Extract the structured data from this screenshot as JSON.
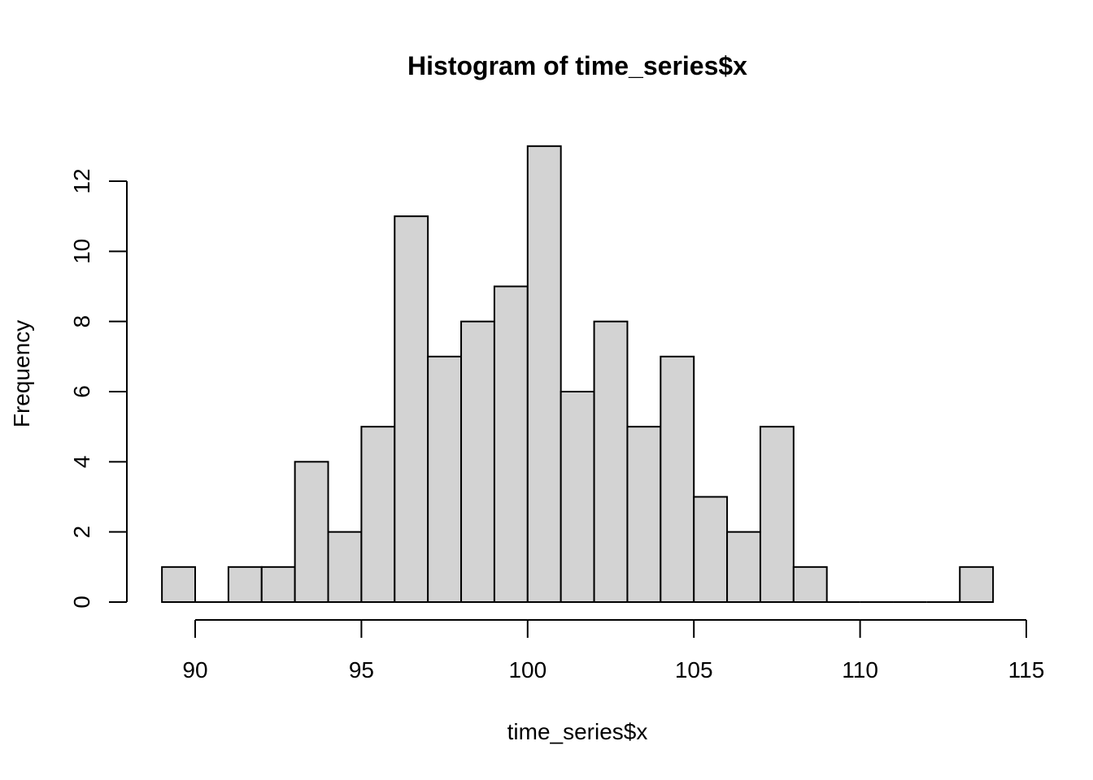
{
  "chart_data": {
    "type": "bar",
    "subtype": "histogram",
    "title": "Histogram of time_series$x",
    "xlabel": "time_series$x",
    "ylabel": "Frequency",
    "bin_edges": [
      89,
      90,
      91,
      92,
      93,
      94,
      95,
      96,
      97,
      98,
      99,
      100,
      101,
      102,
      103,
      104,
      105,
      106,
      107,
      108,
      109,
      110,
      111,
      112,
      113,
      114
    ],
    "values": [
      1,
      0,
      1,
      1,
      4,
      2,
      5,
      11,
      7,
      8,
      9,
      13,
      6,
      8,
      5,
      7,
      3,
      2,
      5,
      1,
      0,
      0,
      0,
      0,
      1
    ],
    "xticks": [
      90,
      95,
      100,
      105,
      110,
      115
    ],
    "yticks": [
      0,
      2,
      4,
      6,
      8,
      10,
      12
    ],
    "xlim": [
      90,
      115
    ],
    "ylim": [
      0,
      12
    ],
    "bar_fill": "#d3d3d3",
    "bar_stroke": "#000000",
    "grid": false
  }
}
